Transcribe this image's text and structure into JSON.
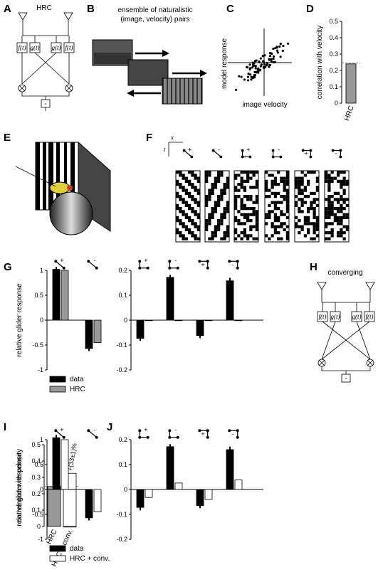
{
  "panels": {
    "A": "A",
    "B": "B",
    "C": "C",
    "D": "D",
    "E": "E",
    "F": "F",
    "G": "G",
    "H": "H",
    "I": "I",
    "J": "J"
  },
  "A": {
    "title": "HRC",
    "boxes": [
      "f(t)",
      "g(t)",
      "g(t)",
      "f(t)"
    ],
    "minus": "-"
  },
  "B": {
    "caption_line1": "ensemble of naturalistic",
    "caption_line2": "(image, velocity) pairs"
  },
  "C": {
    "ylabel": "model response",
    "xlabel": "image velocity"
  },
  "D": {
    "chart_data": {
      "type": "bar",
      "categories": [
        "HRC"
      ],
      "values": [
        0.24
      ],
      "reference_line": 0.245,
      "ylabel": "correlation with velocity",
      "ylim": [
        0,
        0.5
      ],
      "yticks": [
        "0",
        "0.1",
        "0.2",
        "0.3",
        "0.4",
        "0.5"
      ]
    }
  },
  "F": {
    "axis_t": "t",
    "axis_x": "x",
    "signs": [
      "+",
      "-",
      "+",
      "-",
      "+",
      "-"
    ]
  },
  "G": {
    "chart_data": [
      {
        "type": "bar",
        "categories": [
          "2pt +",
          "2pt -"
        ],
        "series": [
          {
            "name": "data",
            "values": [
              1.02,
              -0.57
            ],
            "errors": [
              0.05,
              0.05
            ]
          },
          {
            "name": "HRC",
            "values": [
              1.0,
              -0.45
            ]
          }
        ],
        "ylabel": "relative glider response",
        "ylim": [
          -1,
          1
        ],
        "yticks": [
          "-1",
          "-0.5",
          "0",
          "0.5",
          "1"
        ]
      },
      {
        "type": "bar",
        "categories": [
          "conv +",
          "conv -",
          "div +",
          "div -"
        ],
        "series": [
          {
            "name": "data",
            "values": [
              -0.073,
              0.172,
              -0.062,
              0.158
            ],
            "errors": [
              0.01,
              0.01,
              0.01,
              0.012
            ]
          },
          {
            "name": "HRC",
            "values": [
              -0.002,
              -0.002,
              -0.002,
              -0.002
            ]
          }
        ],
        "ylim": [
          -0.2,
          0.2
        ],
        "yticks": [
          "-0.2",
          "-0.1",
          "0",
          "0.1",
          "0.2"
        ]
      }
    ],
    "legend": [
      "data",
      "HRC"
    ]
  },
  "H": {
    "title": "converging",
    "boxes": [
      "f(t)",
      "g(t)",
      "g(t)",
      "f(t)"
    ],
    "minus": "-"
  },
  "I": {
    "chart_data": {
      "type": "bar",
      "categories": [
        "HRC",
        "HRC + conv."
      ],
      "values": [
        0.245,
        0.325
      ],
      "reference_line": 0.245,
      "annotation": "+(33±1)%",
      "ylabel": "correlation with velocity",
      "ylim": [
        0,
        0.5
      ],
      "yticks": [
        "0",
        "0.1",
        "0.2",
        "0.3",
        "0.4",
        "0.5"
      ]
    }
  },
  "J": {
    "chart_data": [
      {
        "type": "bar",
        "categories": [
          "2pt +",
          "2pt -"
        ],
        "series": [
          {
            "name": "data",
            "values": [
              1.04,
              -0.57
            ],
            "errors": [
              0.06,
              0.05
            ]
          },
          {
            "name": "HRC + conv.",
            "values": [
              1.0,
              -0.45
            ]
          }
        ],
        "ylabel": "relative glider response",
        "ylim": [
          -1,
          1
        ],
        "yticks": [
          "-1",
          "-0.5",
          "0",
          "0.5",
          "1"
        ]
      },
      {
        "type": "bar",
        "categories": [
          "conv +",
          "conv -",
          "div +",
          "div -"
        ],
        "series": [
          {
            "name": "data",
            "values": [
              -0.072,
              0.172,
              -0.065,
              0.16
            ],
            "errors": [
              0.012,
              0.01,
              0.01,
              0.012
            ]
          },
          {
            "name": "HRC + conv.",
            "values": [
              -0.032,
              0.026,
              -0.04,
              0.038
            ]
          }
        ],
        "ylim": [
          -0.2,
          0.2
        ],
        "yticks": [
          "-0.2",
          "-0.1",
          "0",
          "0.1",
          "0.2"
        ]
      }
    ],
    "legend": [
      "data",
      "HRC + conv."
    ]
  },
  "colors": {
    "data": "#000000",
    "hrc": "#999999",
    "hrc_conv": "#ffffff"
  }
}
